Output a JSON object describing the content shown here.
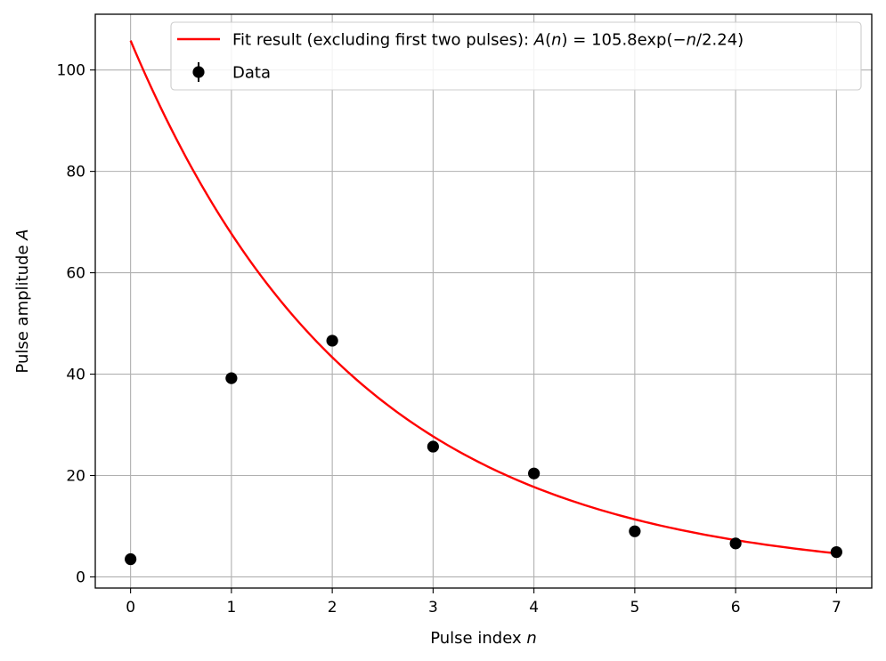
{
  "chart_data": {
    "type": "scatter",
    "xlabel": {
      "text": "Pulse index ",
      "var": "n"
    },
    "ylabel": {
      "text": "Pulse amplitude ",
      "var": "A"
    },
    "xlim": [
      -0.35,
      7.35
    ],
    "ylim": [
      -2.2,
      111
    ],
    "x_ticks": [
      0,
      1,
      2,
      3,
      4,
      5,
      6,
      7
    ],
    "y_ticks": [
      0,
      20,
      40,
      60,
      80,
      100
    ],
    "grid": true,
    "legend_position": "top-right",
    "series": [
      {
        "name": "Data",
        "kind": "points-with-errorbars",
        "color": "#000000",
        "x": [
          0,
          1,
          2,
          3,
          4,
          5,
          6,
          7
        ],
        "y": [
          3.5,
          39.2,
          46.6,
          25.7,
          20.4,
          9.0,
          6.6,
          4.9
        ]
      },
      {
        "name": "Fit result (excluding first two pulses): A(n) = 105.8exp(−n/2.24)",
        "kind": "line",
        "color": "#ff0000",
        "function": "exp_decay",
        "amplitude": 105.8,
        "decay_constant": 2.24,
        "x_range": [
          0,
          7
        ]
      }
    ],
    "legend": [
      {
        "series": 1,
        "segments": [
          {
            "t": "Fit result (excluding first two pulses): ",
            "i": false
          },
          {
            "t": "A",
            "i": true
          },
          {
            "t": "(",
            "i": false
          },
          {
            "t": "n",
            "i": true
          },
          {
            "t": ") = 105.8exp(−",
            "i": false
          },
          {
            "t": "n",
            "i": true
          },
          {
            "t": "/2.24)",
            "i": false
          }
        ]
      },
      {
        "series": 0,
        "segments": [
          {
            "t": "Data",
            "i": false
          }
        ]
      }
    ]
  }
}
